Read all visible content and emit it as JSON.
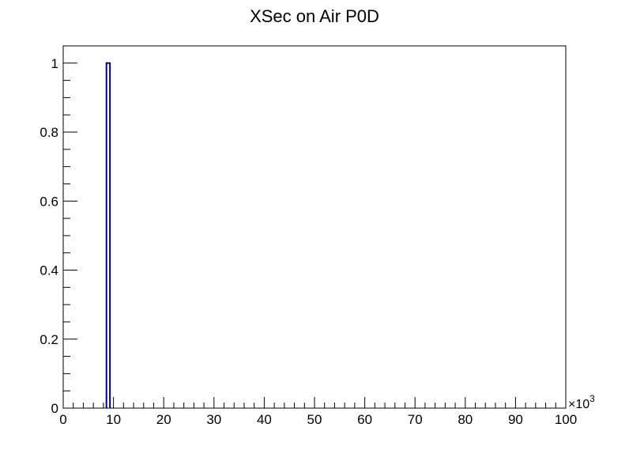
{
  "chart_data": {
    "type": "bar",
    "title": "XSec on Air P0D",
    "xlabel": "",
    "ylabel": "",
    "xlim": [
      0,
      100
    ],
    "ylim": [
      0,
      1.05
    ],
    "x_multiplier": "×10",
    "x_multiplier_exponent": "3",
    "x_ticks": [
      "0",
      "10",
      "20",
      "30",
      "40",
      "50",
      "60",
      "70",
      "80",
      "90",
      "100"
    ],
    "y_ticks": [
      "0",
      "0.2",
      "0.4",
      "0.6",
      "0.8",
      "1"
    ],
    "grid": false,
    "legend": "none",
    "series": [
      {
        "x_low": [
          8.6
        ],
        "x_high": [
          9.3
        ],
        "values": [
          1.0
        ]
      }
    ],
    "line_color": "#000080"
  }
}
